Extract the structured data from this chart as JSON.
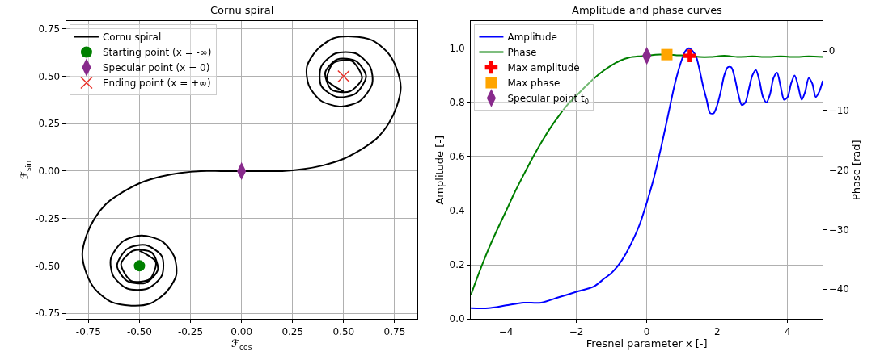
{
  "chart_data": [
    {
      "type": "line",
      "title": "Cornu spiral",
      "xlabel": "ℱ$_{cos}$",
      "ylabel": "ℱ$_{sin}$",
      "xlim": [
        -0.86,
        0.86
      ],
      "ylim": [
        -0.78,
        0.79
      ],
      "xticks": [
        {
          "value": -0.75,
          "label": "-0.75"
        },
        {
          "value": -0.5,
          "label": "-0.50"
        },
        {
          "value": -0.25,
          "label": "-0.25"
        },
        {
          "value": 0,
          "label": "0.00"
        },
        {
          "value": 0.25,
          "label": "0.25"
        },
        {
          "value": 0.5,
          "label": "0.50"
        },
        {
          "value": 0.75,
          "label": "0.75"
        }
      ],
      "yticks": [
        {
          "value": -0.75,
          "label": "-0.75"
        },
        {
          "value": -0.5,
          "label": "-0.50"
        },
        {
          "value": -0.25,
          "label": "-0.25"
        },
        {
          "value": 0,
          "label": "0.00"
        },
        {
          "value": 0.25,
          "label": "0.25"
        },
        {
          "value": 0.5,
          "label": "0.50"
        },
        {
          "value": 0.75,
          "label": "0.75"
        }
      ],
      "grid": true,
      "legend": "top left",
      "series": [
        {
          "name": "Cornu spiral",
          "type": "line",
          "color": "#000000",
          "x": [
            -0.5,
            -0.42,
            -0.45,
            -0.54,
            -0.59,
            -0.53,
            -0.44,
            -0.41,
            -0.47,
            -0.56,
            -0.61,
            -0.56,
            -0.47,
            -0.39,
            -0.39,
            -0.46,
            -0.56,
            -0.63,
            -0.64,
            -0.58,
            -0.49,
            -0.39,
            -0.33,
            -0.32,
            -0.37,
            -0.45,
            -0.54,
            -0.64,
            -0.72,
            -0.76,
            -0.78,
            -0.76,
            -0.72,
            -0.66,
            -0.58,
            -0.49,
            -0.4,
            -0.3,
            -0.2,
            -0.1,
            0,
            0.1,
            0.2,
            0.3,
            0.4,
            0.49,
            0.58,
            0.66,
            0.72,
            0.76,
            0.78,
            0.76,
            0.72,
            0.64,
            0.54,
            0.45,
            0.37,
            0.32,
            0.33,
            0.39,
            0.49,
            0.58,
            0.64,
            0.63,
            0.56,
            0.46,
            0.39,
            0.39,
            0.47,
            0.56,
            0.61,
            0.56,
            0.47,
            0.41,
            0.44,
            0.53,
            0.59,
            0.54,
            0.45,
            0.42,
            0.5
          ],
          "values": [
            -0.42,
            -0.48,
            -0.57,
            -0.58,
            -0.49,
            -0.42,
            -0.43,
            -0.52,
            -0.59,
            -0.58,
            -0.5,
            -0.41,
            -0.39,
            -0.45,
            -0.55,
            -0.62,
            -0.62,
            -0.55,
            -0.46,
            -0.37,
            -0.34,
            -0.37,
            -0.45,
            -0.55,
            -0.64,
            -0.7,
            -0.71,
            -0.69,
            -0.62,
            -0.54,
            -0.44,
            -0.34,
            -0.25,
            -0.17,
            -0.11,
            -0.06,
            -0.03,
            -0.01,
            0.0,
            0.0,
            0,
            0.0,
            0.0,
            0.01,
            0.03,
            0.06,
            0.11,
            0.17,
            0.25,
            0.34,
            0.44,
            0.54,
            0.62,
            0.69,
            0.71,
            0.7,
            0.64,
            0.55,
            0.45,
            0.37,
            0.34,
            0.37,
            0.46,
            0.55,
            0.62,
            0.62,
            0.55,
            0.45,
            0.39,
            0.41,
            0.5,
            0.58,
            0.59,
            0.52,
            0.43,
            0.42,
            0.49,
            0.58,
            0.57,
            0.48,
            0.42
          ]
        },
        {
          "name": "Starting point (x = -∞)",
          "type": "scatter",
          "marker": "circle",
          "color": "#008000",
          "x": [
            -0.5
          ],
          "values": [
            -0.5
          ]
        },
        {
          "name": "Specular point (x = 0)",
          "type": "scatter",
          "marker": "diamond",
          "color": "#882a8c",
          "x": [
            0
          ],
          "values": [
            0
          ]
        },
        {
          "name": "Ending point (x = +∞)",
          "type": "scatter",
          "marker": "cross",
          "color": "#e8312a",
          "x": [
            0.5
          ],
          "values": [
            0.5
          ]
        }
      ]
    },
    {
      "type": "line",
      "title": "Amplitude and phase curves",
      "xlabel": "Fresnel parameter x [-]",
      "ylabel": "Amplitude [-]",
      "y2label": "Phase [rad]",
      "xlim": [
        -5,
        5
      ],
      "ylim": [
        0,
        1.1
      ],
      "y2lim": [
        -45,
        5
      ],
      "xticks": [
        {
          "value": -4,
          "label": "−4"
        },
        {
          "value": -2,
          "label": "−2"
        },
        0,
        2,
        4
      ],
      "yticks": [
        {
          "value": 0,
          "label": "0.0"
        },
        0.2,
        0.4,
        0.6,
        0.8,
        {
          "value": 1,
          "label": "1.0"
        }
      ],
      "y2ticks": [
        0,
        {
          "value": -10,
          "label": "−10"
        },
        {
          "value": -20,
          "label": "−20"
        },
        {
          "value": -30,
          "label": "−30"
        },
        {
          "value": -40,
          "label": "−40"
        }
      ],
      "grid": true,
      "legend": "top left",
      "series": [
        {
          "name": "Amplitude",
          "type": "line",
          "color": "#0000ff",
          "x": [
            -5,
            -4.5,
            -4,
            -3.5,
            -3,
            -2.5,
            -2,
            -1.5,
            -1.2,
            -1,
            -0.8,
            -0.6,
            -0.4,
            -0.2,
            0,
            0.2,
            0.4,
            0.6,
            0.8,
            1.0,
            1.1,
            1.2,
            1.3,
            1.4,
            1.5,
            1.6,
            1.7,
            1.8,
            1.9,
            2.0,
            2.1,
            2.2,
            2.3,
            2.4,
            2.5,
            2.6,
            2.7,
            2.8,
            2.9,
            3.0,
            3.1,
            3.2,
            3.3,
            3.4,
            3.5,
            3.6,
            3.7,
            3.8,
            3.9,
            4.0,
            4.1,
            4.2,
            4.3,
            4.4,
            4.5,
            4.6,
            4.7,
            4.8,
            4.9,
            5.0
          ],
          "values": [
            0.04,
            0.04,
            0.05,
            0.06,
            0.06,
            0.08,
            0.1,
            0.12,
            0.15,
            0.17,
            0.2,
            0.24,
            0.29,
            0.35,
            0.43,
            0.52,
            0.63,
            0.75,
            0.87,
            0.96,
            0.99,
            1.0,
            0.99,
            0.97,
            0.92,
            0.86,
            0.81,
            0.76,
            0.76,
            0.79,
            0.84,
            0.9,
            0.93,
            0.93,
            0.89,
            0.83,
            0.79,
            0.8,
            0.85,
            0.9,
            0.92,
            0.88,
            0.82,
            0.8,
            0.83,
            0.89,
            0.91,
            0.86,
            0.81,
            0.82,
            0.87,
            0.9,
            0.86,
            0.81,
            0.84,
            0.89,
            0.87,
            0.82,
            0.84,
            0.88
          ]
        },
        {
          "name": "Phase",
          "type": "line",
          "axis": "y2",
          "color": "#007f00",
          "x": [
            -5,
            -4.75,
            -4.5,
            -4.25,
            -4,
            -3.75,
            -3.5,
            -3.25,
            -3,
            -2.75,
            -2.5,
            -2.25,
            -2,
            -1.75,
            -1.5,
            -1.25,
            -1,
            -0.75,
            -0.5,
            -0.25,
            0,
            0.25,
            0.57,
            0.85,
            1.2,
            1.5,
            1.8,
            2.2,
            2.6,
            3.0,
            3.4,
            3.8,
            4.2,
            4.6,
            5.0
          ],
          "values": [
            -41,
            -37,
            -33.3,
            -30,
            -26.9,
            -23.7,
            -20.8,
            -18,
            -15.4,
            -13,
            -10.9,
            -9,
            -7.5,
            -6,
            -4.6,
            -3.4,
            -2.4,
            -1.6,
            -1.1,
            -0.9,
            -0.8,
            -0.6,
            -0.6,
            -0.7,
            -0.8,
            -1.0,
            -1.0,
            -0.8,
            -1.0,
            -0.9,
            -1.0,
            -0.9,
            -1.0,
            -0.9,
            -1.0
          ]
        },
        {
          "name": "Max amplitude",
          "type": "scatter",
          "axis": "y2",
          "marker": "plus",
          "color": "#ff0000",
          "x": [
            1.22
          ],
          "values": [
            -0.8
          ]
        },
        {
          "name": "Max phase",
          "type": "scatter",
          "axis": "y2",
          "marker": "square",
          "color": "#ffa500",
          "x": [
            0.57
          ],
          "values": [
            -0.6
          ]
        },
        {
          "name": "Specular point t$_{0}$",
          "type": "scatter",
          "axis": "y2",
          "marker": "diamond",
          "color": "#882a8c",
          "x": [
            0
          ],
          "values": [
            -0.8
          ]
        }
      ]
    }
  ]
}
